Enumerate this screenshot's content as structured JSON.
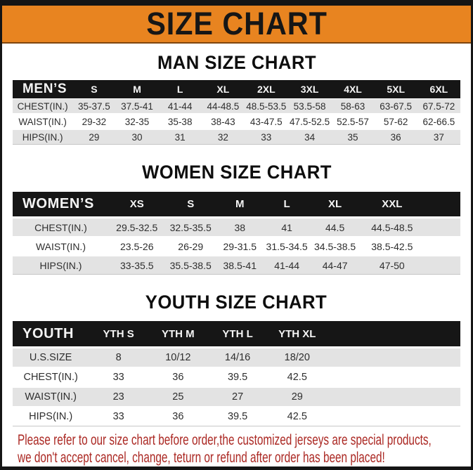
{
  "page": {
    "title": "SIZE CHART",
    "footer_line1": "Please refer to our size chart before order,the customized jerseys are special products,",
    "footer_line2": "we don't accept cancel, change, teturn or refund after order has been placed!"
  },
  "colors": {
    "accent_orange": "#e88420",
    "table_header_black": "#161616",
    "row_stripe_gray": "#e3e3e3",
    "footer_red": "#ab2823"
  },
  "men": {
    "title": "MAN SIZE CHART",
    "header": [
      "MEN’S",
      "S",
      "M",
      "L",
      "XL",
      "2XL",
      "3XL",
      "4XL",
      "5XL",
      "6XL"
    ],
    "rows": [
      {
        "label": "CHEST(IN.)",
        "values": [
          "35-37.5",
          "37.5-41",
          "41-44",
          "44-48.5",
          "48.5-53.5",
          "53.5-58",
          "58-63",
          "63-67.5",
          "67.5-72"
        ]
      },
      {
        "label": "WAIST(IN.)",
        "values": [
          "29-32",
          "32-35",
          "35-38",
          "38-43",
          "43-47.5",
          "47.5-52.5",
          "52.5-57",
          "57-62",
          "62-66.5"
        ]
      },
      {
        "label": "HIPS(IN.)",
        "values": [
          "29",
          "30",
          "31",
          "32",
          "33",
          "34",
          "35",
          "36",
          "37"
        ]
      }
    ]
  },
  "women": {
    "title": "WOMEN SIZE CHART",
    "header": [
      "WOMEN’S",
      "XS",
      "S",
      "M",
      "L",
      "XL",
      "XXL"
    ],
    "rows": [
      {
        "label": "CHEST(IN.)",
        "values": [
          "29.5-32.5",
          "32.5-35.5",
          "38",
          "41",
          "44.5",
          "44.5-48.5"
        ]
      },
      {
        "label": "WAIST(IN.)",
        "values": [
          "23.5-26",
          "26-29",
          "29-31.5",
          "31.5-34.5",
          "34.5-38.5",
          "38.5-42.5"
        ]
      },
      {
        "label": "HIPS(IN.)",
        "values": [
          "33-35.5",
          "35.5-38.5",
          "38.5-41",
          "41-44",
          "44-47",
          "47-50"
        ]
      }
    ]
  },
  "youth": {
    "title": "YOUTH SIZE CHART",
    "header": [
      "YOUTH",
      "YTH S",
      "YTH M",
      "YTH L",
      "YTH XL"
    ],
    "rows": [
      {
        "label": "U.S.SIZE",
        "values": [
          "8",
          "10/12",
          "14/16",
          "18/20"
        ]
      },
      {
        "label": "CHEST(IN.)",
        "values": [
          "33",
          "36",
          "39.5",
          "42.5"
        ]
      },
      {
        "label": "WAIST(IN.)",
        "values": [
          "23",
          "25",
          "27",
          "29"
        ]
      },
      {
        "label": "HIPS(IN.)",
        "values": [
          "33",
          "36",
          "39.5",
          "42.5"
        ]
      }
    ]
  }
}
